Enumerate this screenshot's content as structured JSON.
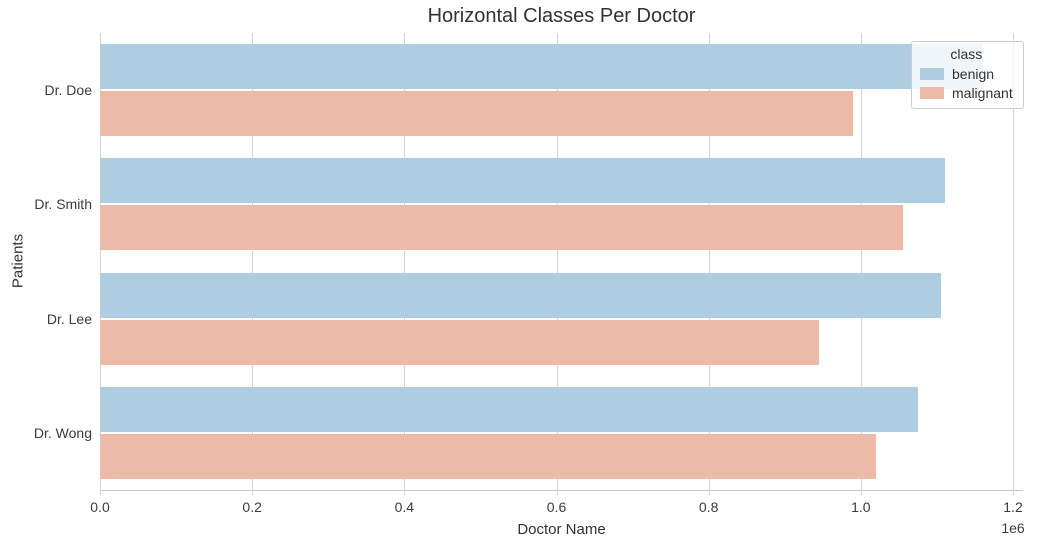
{
  "chart_data": {
    "type": "bar",
    "orientation": "horizontal",
    "title": "Horizontal Classes Per Doctor",
    "xlabel": "Doctor Name",
    "ylabel": "Patients",
    "categories": [
      "Dr. Doe",
      "Dr. Smith",
      "Dr. Lee",
      "Dr. Wong"
    ],
    "series": [
      {
        "name": "benign",
        "color": "#aecde1",
        "values": [
          1160000,
          1110000,
          1105000,
          1075000
        ]
      },
      {
        "name": "malignant",
        "color": "#ecbaa7",
        "values": [
          990000,
          1055000,
          945000,
          1020000
        ]
      }
    ],
    "xlim": [
      0,
      1200000
    ],
    "x_ticks": [
      0,
      200000,
      400000,
      600000,
      800000,
      1000000,
      1200000
    ],
    "x_tick_labels": [
      "0.0",
      "0.2",
      "0.4",
      "0.6",
      "0.8",
      "1.0",
      "1.2"
    ],
    "x_offset_label": "1e6",
    "grid": "vertical",
    "legend": {
      "title": "class",
      "position": "upper right",
      "entries": [
        "benign",
        "malignant"
      ]
    },
    "colors": {
      "grid": "#d4d4d4",
      "axis": "#c9c9c9",
      "text": "#333333"
    }
  }
}
